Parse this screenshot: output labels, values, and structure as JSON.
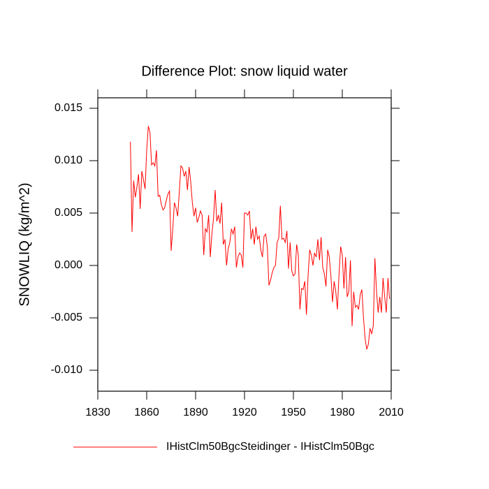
{
  "chart_data": {
    "type": "line",
    "title": "Difference Plot: snow liquid water",
    "y_label": "SNOWLIQ  (kg/m^2)",
    "x": [
      1850,
      1851,
      1852,
      1853,
      1854,
      1855,
      1856,
      1857,
      1858,
      1859,
      1860,
      1861,
      1862,
      1863,
      1864,
      1865,
      1866,
      1867,
      1868,
      1869,
      1870,
      1871,
      1872,
      1873,
      1874,
      1875,
      1876,
      1877,
      1878,
      1879,
      1880,
      1881,
      1882,
      1883,
      1884,
      1885,
      1886,
      1887,
      1888,
      1889,
      1890,
      1891,
      1892,
      1893,
      1894,
      1895,
      1896,
      1897,
      1898,
      1899,
      1900,
      1901,
      1902,
      1903,
      1904,
      1905,
      1906,
      1907,
      1908,
      1909,
      1910,
      1911,
      1912,
      1913,
      1914,
      1915,
      1916,
      1917,
      1918,
      1919,
      1920,
      1921,
      1922,
      1923,
      1924,
      1925,
      1926,
      1927,
      1928,
      1929,
      1930,
      1931,
      1932,
      1933,
      1934,
      1935,
      1936,
      1937,
      1938,
      1939,
      1940,
      1941,
      1942,
      1943,
      1944,
      1945,
      1946,
      1947,
      1948,
      1949,
      1950,
      1951,
      1952,
      1953,
      1954,
      1955,
      1956,
      1957,
      1958,
      1959,
      1960,
      1961,
      1962,
      1963,
      1964,
      1965,
      1966,
      1967,
      1968,
      1969,
      1970,
      1971,
      1972,
      1973,
      1974,
      1975,
      1976,
      1977,
      1978,
      1979,
      1980,
      1981,
      1982,
      1983,
      1984,
      1985,
      1986,
      1987,
      1988,
      1989,
      1990,
      1991,
      1992,
      1993,
      1994,
      1995,
      1996,
      1997,
      1998,
      1999,
      2000,
      2001,
      2002,
      2003,
      2004,
      2005,
      2006,
      2007,
      2008,
      2009
    ],
    "series": [
      {
        "name": "IHistClm50BgcSteidinger - IHistClm50Bgc",
        "color": "#ff0000",
        "values": [
          0.0118,
          0.0032,
          0.0081,
          0.0065,
          0.0075,
          0.0087,
          0.0054,
          0.009,
          0.0082,
          0.0073,
          0.011,
          0.0133,
          0.0127,
          0.0096,
          0.0098,
          0.0095,
          0.011,
          0.0066,
          0.0067,
          0.0058,
          0.0053,
          0.0055,
          0.0062,
          0.0068,
          0.0071,
          0.0014,
          0.0035,
          0.006,
          0.0055,
          0.0047,
          0.007,
          0.0095,
          0.0093,
          0.0085,
          0.009,
          0.0072,
          0.0094,
          0.008,
          0.006,
          0.0047,
          0.0055,
          0.0041,
          0.0046,
          0.0052,
          0.0048,
          0.001,
          0.0035,
          0.0032,
          0.0048,
          0.0008,
          0.003,
          0.0045,
          0.0072,
          0.0042,
          0.0048,
          0.004,
          0.006,
          0.002,
          0.0025,
          0.0,
          0.0016,
          0.0022,
          0.0035,
          0.003,
          0.0037,
          -0.0002,
          0.0008,
          0.0012,
          0.001,
          -0.0002,
          0.005,
          0.005,
          0.0048,
          0.0052,
          0.0025,
          0.0035,
          0.002,
          0.0037,
          0.0025,
          0.0028,
          0.0015,
          0.0008,
          0.0028,
          0.003,
          0.0018,
          -0.0019,
          -0.0014,
          -0.0007,
          -0.0002,
          0.0,
          0.0022,
          0.0026,
          0.0057,
          0.0025,
          0.0026,
          0.0022,
          0.0033,
          -0.0003,
          0.0022,
          -0.0005,
          -0.001,
          -0.0008,
          0.002,
          0.001,
          -0.0042,
          -0.0022,
          -0.0023,
          -0.0015,
          -0.0047,
          -0.001,
          0.0015,
          0.001,
          0.0,
          0.0012,
          0.0008,
          0.0025,
          0.0005,
          0.0027,
          -0.0002,
          -0.0008,
          -0.002,
          0.0015,
          0.0008,
          -0.001,
          -0.0035,
          -0.0015,
          -0.0025,
          -0.0042,
          -0.0008,
          0.0018,
          0.001,
          -0.0022,
          0.0008,
          -0.003,
          -0.0025,
          0.0005,
          -0.0058,
          -0.0025,
          -0.004,
          -0.0038,
          -0.0042,
          -0.0028,
          -0.0023,
          -0.005,
          -0.007,
          -0.008,
          -0.0075,
          -0.006,
          -0.0065,
          -0.0058,
          0.0007,
          -0.0025,
          -0.0045,
          -0.003,
          -0.0045,
          -0.0012,
          -0.003,
          -0.0045,
          -0.0012,
          -0.0032
        ]
      }
    ],
    "xlim": [
      1830,
      2010
    ],
    "xticks": [
      1830,
      1860,
      1890,
      1920,
      1950,
      1980,
      2010
    ],
    "ylim": [
      -0.012,
      0.016
    ],
    "yticks": [
      {
        "value": -0.01,
        "label": "-0.010"
      },
      {
        "value": -0.005,
        "label": "-0.005"
      },
      {
        "value": 0,
        "label": "0.000"
      },
      {
        "value": 0.005,
        "label": "0.005"
      },
      {
        "value": 0.01,
        "label": "0.010"
      },
      {
        "value": 0.015,
        "label": "0.015"
      }
    ]
  }
}
